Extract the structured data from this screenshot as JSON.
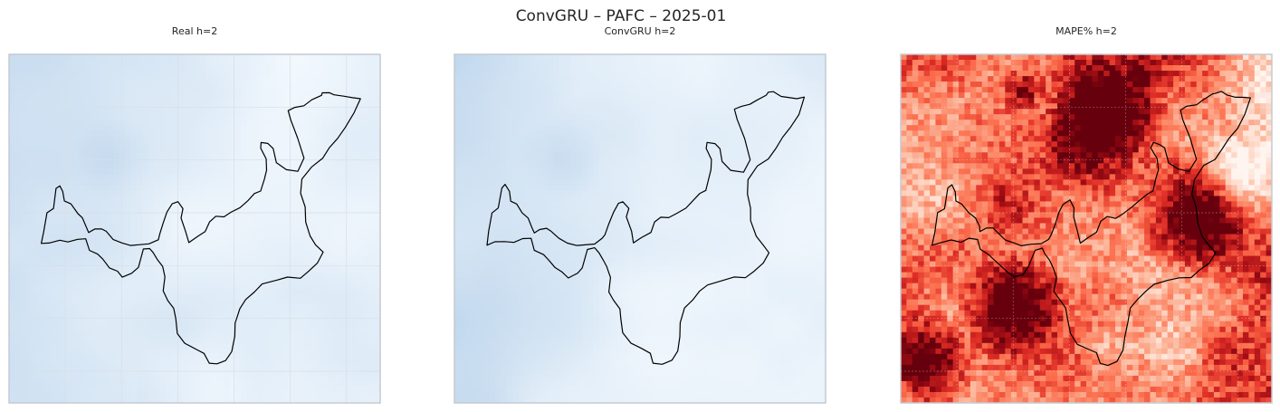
{
  "figure": {
    "suptitle": "ConvGRU – PAFC – 2025-01",
    "text_color": "#262626",
    "panel_border_color": "#c5cad1",
    "grid_color": "#d9dee5"
  },
  "chart_data": [
    {
      "type": "heatmap",
      "title": "Real h=2",
      "colormap": "Blues",
      "color_low": "#f7fbff",
      "color_high": "#08306b",
      "value_range": [
        0,
        1
      ],
      "grid_resolution": 64,
      "region_outline": {
        "stroke": "#000000",
        "visible": true
      },
      "xlabel": "",
      "ylabel": "",
      "grid": true,
      "ticks": false
    },
    {
      "type": "heatmap",
      "title": "ConvGRU h=2",
      "colormap": "Blues",
      "color_low": "#f7fbff",
      "color_high": "#08306b",
      "value_range": [
        0,
        1
      ],
      "grid_resolution": 64,
      "region_outline": {
        "stroke": "#000000",
        "visible": true
      },
      "xlabel": "",
      "ylabel": "",
      "grid": false,
      "ticks": false
    },
    {
      "type": "heatmap",
      "title": "MAPE% h=2",
      "colormap": "Reds",
      "color_low": "#fff5f0",
      "color_high": "#67000d",
      "value_range": [
        0,
        1
      ],
      "grid_resolution": 64,
      "region_outline": {
        "stroke": "#000000",
        "visible": true
      },
      "xlabel": "",
      "ylabel": "",
      "grid": true,
      "ticks": false
    }
  ]
}
